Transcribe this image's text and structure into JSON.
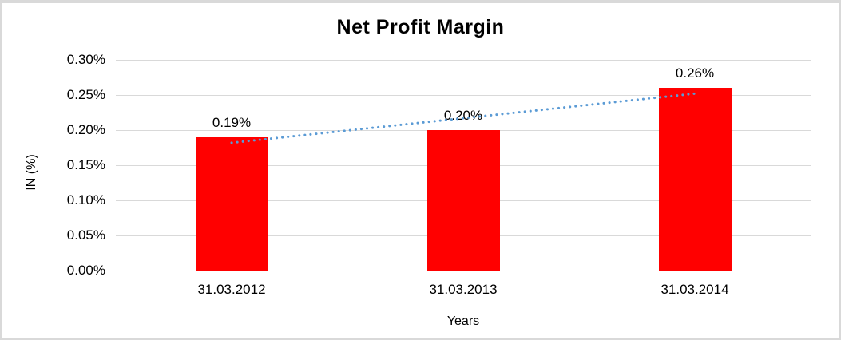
{
  "chart_data": {
    "type": "bar",
    "title": "Net Profit Margin",
    "categories": [
      "31.03.2012",
      "31.03.2013",
      "31.03.2014"
    ],
    "values": [
      0.19,
      0.2,
      0.26
    ],
    "data_labels": [
      "0.19%",
      "0.20%",
      "0.26%"
    ],
    "xlabel": "Years",
    "ylabel": "IN (%)",
    "ylim": [
      0,
      0.3
    ],
    "ytick_step": 0.05,
    "ytick_labels": [
      "0.00%",
      "0.05%",
      "0.10%",
      "0.15%",
      "0.20%",
      "0.25%",
      "0.30%"
    ],
    "grid": true,
    "legend": false,
    "bar_color": "#ff0000",
    "gridline_color": "#d9d9d9",
    "text_color": "#000000",
    "trendline": {
      "type": "linear",
      "style": "dotted",
      "color": "#5b9bd5",
      "start_value": 0.182,
      "end_value": 0.252
    }
  }
}
